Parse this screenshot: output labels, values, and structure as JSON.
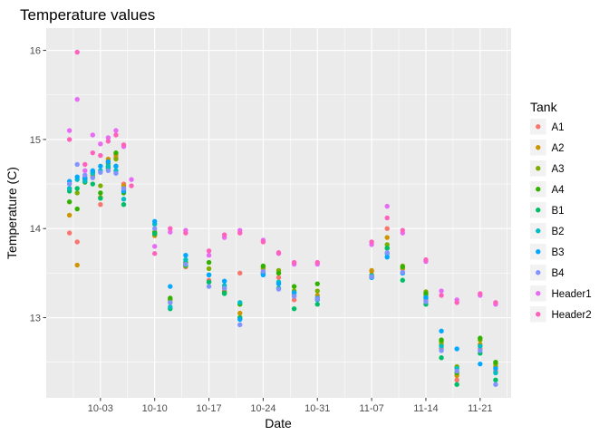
{
  "chart_data": {
    "type": "scatter",
    "title": "Temperature values",
    "xlabel": "Date",
    "ylabel": "Temperature (C)",
    "x_is_date": true,
    "xlim": [
      "09-26",
      "11-25"
    ],
    "ylim": [
      12.1,
      16.25
    ],
    "x_ticks": [
      {
        "date": "10-03",
        "label": "10-03"
      },
      {
        "date": "10-10",
        "label": "10-10"
      },
      {
        "date": "10-17",
        "label": "10-17"
      },
      {
        "date": "10-24",
        "label": "10-24"
      },
      {
        "date": "10-31",
        "label": "10-31"
      },
      {
        "date": "11-07",
        "label": "11-07"
      },
      {
        "date": "11-14",
        "label": "11-14"
      },
      {
        "date": "11-21",
        "label": "11-21"
      }
    ],
    "y_ticks": [
      13,
      14,
      15,
      16
    ],
    "grid": true,
    "panel_background": "#ebebeb",
    "grid_color": "#ffffff",
    "legend_title": "Tank",
    "legend_position": "right",
    "x": [
      "09-29",
      "09-30",
      "10-01",
      "10-02",
      "10-03",
      "10-04",
      "10-05",
      "10-06",
      "10-07",
      "10-10",
      "10-12",
      "10-14",
      "10-17",
      "10-19",
      "10-21",
      "10-24",
      "10-26",
      "10-28",
      "10-31",
      "11-07",
      "11-09",
      "11-11",
      "11-14",
      "11-16",
      "11-18",
      "11-21",
      "11-23"
    ],
    "series": [
      {
        "name": "A1",
        "color": "#F8766D",
        "values": [
          13.95,
          13.85,
          14.57,
          14.6,
          14.27,
          14.75,
          14.8,
          14.5,
          null,
          13.93,
          13.2,
          13.57,
          13.42,
          13.3,
          13.5,
          13.5,
          13.45,
          13.2,
          13.2,
          13.52,
          14.0,
          13.55,
          13.2,
          12.65,
          12.3,
          12.65,
          12.4
        ]
      },
      {
        "name": "A2",
        "color": "#CD9600",
        "values": [
          14.15,
          13.59,
          14.55,
          14.62,
          14.35,
          14.78,
          14.83,
          14.48,
          null,
          13.92,
          13.17,
          13.6,
          13.4,
          13.33,
          13.05,
          13.55,
          13.5,
          13.25,
          13.25,
          13.53,
          13.9,
          13.55,
          13.25,
          12.7,
          12.35,
          12.7,
          12.45
        ]
      },
      {
        "name": "A3",
        "color": "#7CAE00",
        "values": [
          14.45,
          14.4,
          14.56,
          14.58,
          14.48,
          14.73,
          14.78,
          14.45,
          null,
          13.95,
          13.2,
          13.58,
          13.55,
          13.28,
          13.0,
          13.57,
          13.53,
          13.3,
          13.3,
          13.48,
          13.82,
          13.58,
          13.29,
          12.73,
          12.45,
          12.75,
          12.48
        ]
      },
      {
        "name": "A4",
        "color": "#31B200",
        "values": [
          14.3,
          14.22,
          14.52,
          14.64,
          14.4,
          14.7,
          14.85,
          14.4,
          null,
          13.96,
          13.22,
          13.62,
          13.62,
          13.28,
          13.15,
          13.58,
          13.5,
          13.35,
          13.38,
          13.46,
          13.78,
          13.57,
          13.27,
          12.75,
          12.38,
          12.77,
          12.5
        ]
      },
      {
        "name": "B1",
        "color": "#00BE67",
        "values": [
          14.42,
          14.45,
          14.55,
          14.5,
          14.34,
          14.68,
          14.7,
          14.27,
          null,
          13.94,
          13.1,
          13.59,
          13.4,
          13.27,
          13.0,
          13.5,
          13.33,
          13.1,
          13.15,
          13.45,
          13.78,
          13.42,
          13.15,
          12.55,
          12.25,
          12.6,
          12.3
        ]
      },
      {
        "name": "B2",
        "color": "#00BFC4",
        "values": [
          14.45,
          14.55,
          14.53,
          14.62,
          14.65,
          14.7,
          14.65,
          14.33,
          null,
          14.05,
          13.12,
          13.65,
          13.48,
          13.36,
          13.17,
          13.5,
          13.4,
          13.28,
          13.2,
          13.47,
          13.72,
          13.5,
          13.23,
          12.68,
          12.43,
          12.68,
          12.38
        ]
      },
      {
        "name": "B3",
        "color": "#00A9FF",
        "values": [
          14.53,
          14.58,
          14.57,
          14.65,
          14.7,
          14.75,
          14.7,
          14.42,
          null,
          14.08,
          13.35,
          13.7,
          13.48,
          13.41,
          12.98,
          13.48,
          13.38,
          13.28,
          13.22,
          13.45,
          13.68,
          13.5,
          13.22,
          12.85,
          12.65,
          12.48,
          12.43
        ]
      },
      {
        "name": "B4",
        "color": "#8494FF",
        "values": [
          14.5,
          14.72,
          14.6,
          14.57,
          14.63,
          14.65,
          14.62,
          14.45,
          null,
          14.0,
          13.17,
          13.6,
          13.35,
          13.33,
          12.92,
          13.52,
          13.32,
          13.24,
          13.21,
          13.46,
          13.73,
          13.51,
          13.18,
          12.63,
          12.4,
          12.63,
          12.25
        ]
      },
      {
        "name": "Header1",
        "color": "#E76BF3",
        "values": [
          15.1,
          15.45,
          14.65,
          15.05,
          14.95,
          15.02,
          15.1,
          14.92,
          14.55,
          13.8,
          13.96,
          13.98,
          13.7,
          13.9,
          13.98,
          13.87,
          13.72,
          13.6,
          13.6,
          13.82,
          14.25,
          13.95,
          13.63,
          13.3,
          13.2,
          13.25,
          13.15
        ]
      },
      {
        "name": "Header2",
        "color": "#FF62BC",
        "values": [
          15.0,
          15.98,
          14.72,
          14.85,
          14.82,
          14.98,
          15.05,
          14.94,
          14.48,
          13.72,
          14.0,
          13.95,
          13.75,
          13.93,
          13.95,
          13.85,
          13.73,
          13.62,
          13.62,
          13.85,
          14.12,
          13.98,
          13.65,
          13.25,
          13.17,
          13.27,
          13.17
        ]
      }
    ]
  }
}
